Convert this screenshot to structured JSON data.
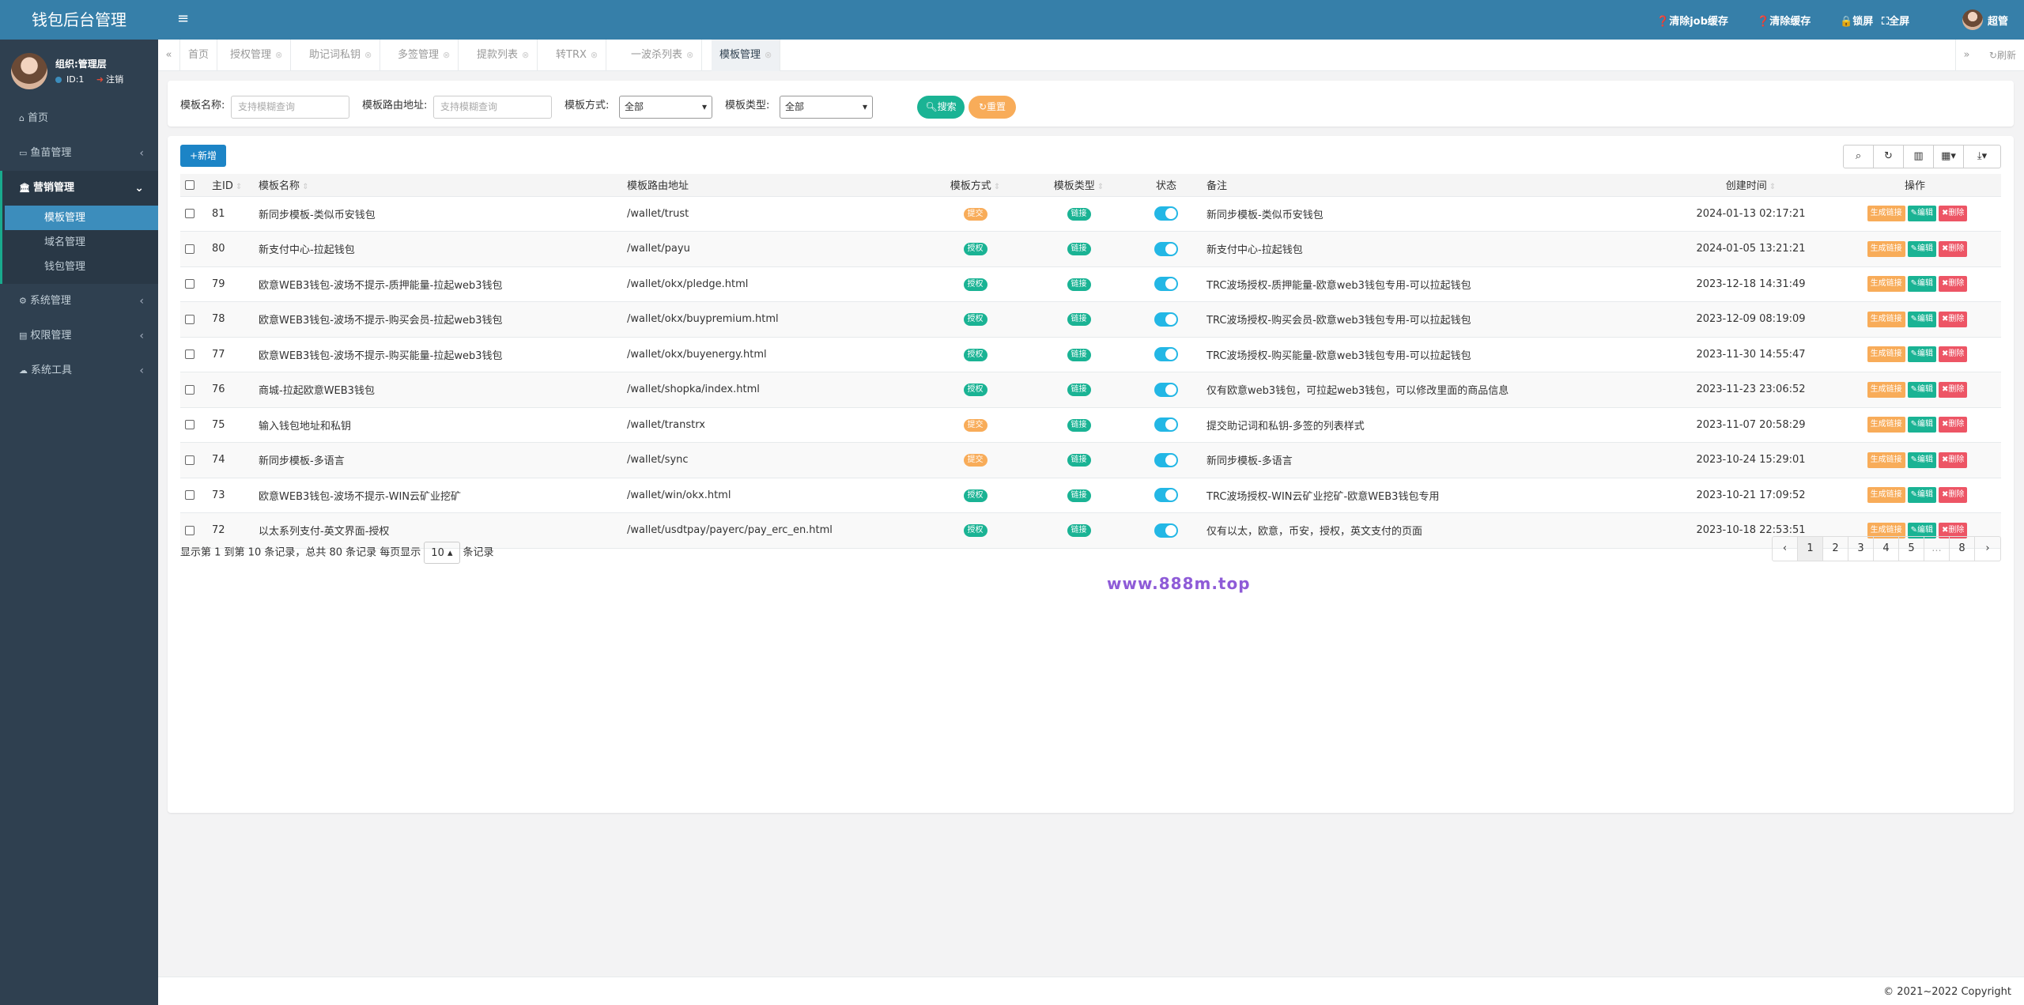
{
  "app": {
    "title": "钱包后台管理"
  },
  "user": {
    "name": "组织:管理层",
    "id": "ID:1",
    "logout": "注销"
  },
  "sidebar": {
    "items": [
      {
        "label": "首页",
        "icon": "home-icon"
      },
      {
        "label": "鱼苗管理",
        "icon": "fish-icon"
      },
      {
        "label": "营销管理",
        "icon": "bank-icon"
      },
      {
        "label": "系统管理",
        "icon": "gear-icon"
      },
      {
        "label": "权限管理",
        "icon": "id-card-icon"
      },
      {
        "label": "系统工具",
        "icon": "cloud-icon"
      }
    ],
    "sub": [
      "模板管理",
      "域名管理",
      "钱包管理"
    ]
  },
  "topbar": {
    "clear_job": "清除job缓存",
    "clear_cache": "清除缓存",
    "lock": "锁屏",
    "fullscreen": "全屏",
    "admin": "超管"
  },
  "tabs": [
    "首页",
    "授权管理",
    "助记词私钥",
    "多签管理",
    "提款列表",
    "转TRX",
    "一波杀列表",
    "模板管理"
  ],
  "refresh": "刷新",
  "search": {
    "name_label": "模板名称:",
    "name_placeholder": "支持模糊查询",
    "path_label": "模板路由地址:",
    "path_placeholder": "支持模糊查询",
    "mode_label": "模板方式:",
    "mode_value": "全部",
    "type_label": "模板类型:",
    "type_value": "全部",
    "search_btn": "搜索",
    "reset_btn": "重置"
  },
  "toolbar": {
    "add_btn": "新增"
  },
  "table": {
    "headers": [
      "主ID",
      "模板名称",
      "模板路由地址",
      "模板方式",
      "模板类型",
      "状态",
      "备注",
      "创建时间",
      "操作"
    ],
    "op_labels": {
      "gen": "生成链接",
      "edit": "编辑",
      "del": "删除"
    },
    "rows": [
      {
        "id": "81",
        "name": "新同步模板-类似币安钱包",
        "path": "/wallet/trust",
        "mode": "提交",
        "mode_color": "#f8ac59",
        "type": "链接",
        "note": "新同步模板-类似币安钱包",
        "time": "2024-01-13 02:17:21"
      },
      {
        "id": "80",
        "name": "新支付中心-拉起钱包",
        "path": "/wallet/payu",
        "mode": "授权",
        "mode_color": "#1ab394",
        "type": "链接",
        "note": "新支付中心-拉起钱包",
        "time": "2024-01-05 13:21:21"
      },
      {
        "id": "79",
        "name": "欧意WEB3钱包-波场不提示-质押能量-拉起web3钱包",
        "path": "/wallet/okx/pledge.html",
        "mode": "授权",
        "mode_color": "#1ab394",
        "type": "链接",
        "note": "TRC波场授权-质押能量-欧意web3钱包专用-可以拉起钱包",
        "time": "2023-12-18 14:31:49"
      },
      {
        "id": "78",
        "name": "欧意WEB3钱包-波场不提示-购买会员-拉起web3钱包",
        "path": "/wallet/okx/buypremium.html",
        "mode": "授权",
        "mode_color": "#1ab394",
        "type": "链接",
        "note": "TRC波场授权-购买会员-欧意web3钱包专用-可以拉起钱包",
        "time": "2023-12-09 08:19:09"
      },
      {
        "id": "77",
        "name": "欧意WEB3钱包-波场不提示-购买能量-拉起web3钱包",
        "path": "/wallet/okx/buyenergy.html",
        "mode": "授权",
        "mode_color": "#1ab394",
        "type": "链接",
        "note": "TRC波场授权-购买能量-欧意web3钱包专用-可以拉起钱包",
        "time": "2023-11-30 14:55:47"
      },
      {
        "id": "76",
        "name": "商城-拉起欧意WEB3钱包",
        "path": "/wallet/shopka/index.html",
        "mode": "授权",
        "mode_color": "#1ab394",
        "type": "链接",
        "note": "仅有欧意web3钱包，可拉起web3钱包，可以修改里面的商品信息",
        "time": "2023-11-23 23:06:52"
      },
      {
        "id": "75",
        "name": "输入钱包地址和私钥",
        "path": "/wallet/transtrx",
        "mode": "提交",
        "mode_color": "#f8ac59",
        "type": "链接",
        "note": "提交助记词和私钥-多签的列表样式",
        "time": "2023-11-07 20:58:29"
      },
      {
        "id": "74",
        "name": "新同步模板-多语言",
        "path": "/wallet/sync",
        "mode": "提交",
        "mode_color": "#f8ac59",
        "type": "链接",
        "note": "新同步模板-多语言",
        "time": "2023-10-24 15:29:01"
      },
      {
        "id": "73",
        "name": "欧意WEB3钱包-波场不提示-WIN云矿业挖矿",
        "path": "/wallet/win/okx.html",
        "mode": "授权",
        "mode_color": "#1ab394",
        "type": "链接",
        "note": "TRC波场授权-WIN云矿业挖矿-欧意WEB3钱包专用",
        "time": "2023-10-21 17:09:52"
      },
      {
        "id": "72",
        "name": "以太系列支付-英文界面-授权",
        "path": "/wallet/usdtpay/payerc/pay_erc_en.html",
        "mode": "授权",
        "mode_color": "#1ab394",
        "type": "链接",
        "note": "仅有以太，欧意，币安，授权，英文支付的页面",
        "time": "2023-10-18 22:53:51"
      }
    ]
  },
  "pagination": {
    "info_prefix": "显示第 1 到第 10 条记录，总共 80 条记录  每页显示",
    "page_size": "10",
    "info_suffix": "条记录",
    "pages": [
      "‹",
      "1",
      "2",
      "3",
      "4",
      "5",
      "...",
      "8",
      "›"
    ]
  },
  "watermark": "www.888m.top",
  "footer": {
    "copyright": "© 2021~2022 Copyright"
  }
}
